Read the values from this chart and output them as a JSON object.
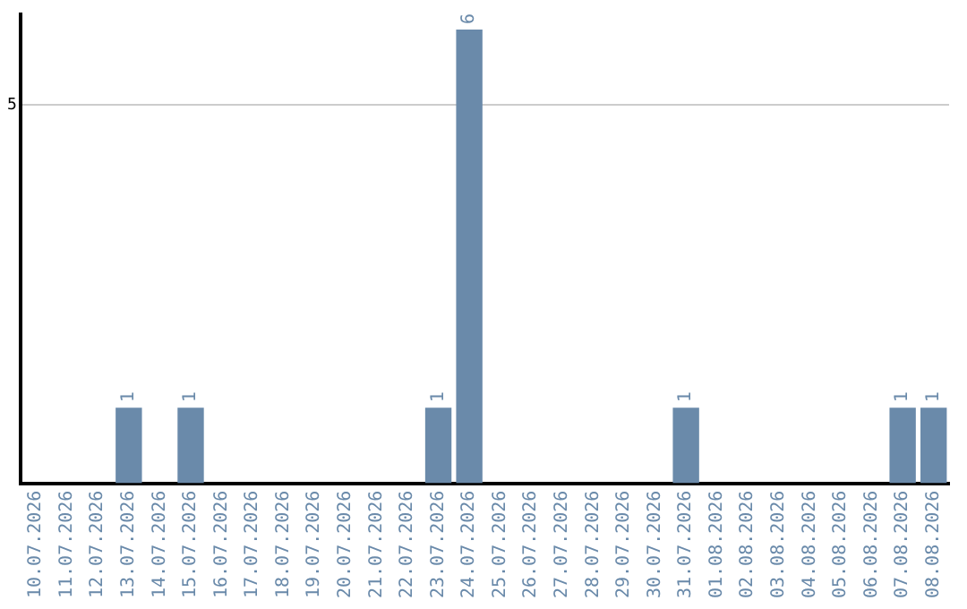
{
  "chart_data": {
    "type": "bar",
    "categories": [
      "10.07.2026",
      "11.07.2026",
      "12.07.2026",
      "13.07.2026",
      "14.07.2026",
      "15.07.2026",
      "16.07.2026",
      "17.07.2026",
      "18.07.2026",
      "19.07.2026",
      "20.07.2026",
      "21.07.2026",
      "22.07.2026",
      "23.07.2026",
      "24.07.2026",
      "25.07.2026",
      "26.07.2026",
      "27.07.2026",
      "28.07.2026",
      "29.07.2026",
      "30.07.2026",
      "31.07.2026",
      "01.08.2026",
      "02.08.2026",
      "03.08.2026",
      "04.08.2026",
      "05.08.2026",
      "06.08.2026",
      "07.08.2026",
      "08.08.2026"
    ],
    "values": [
      0,
      0,
      0,
      1,
      0,
      1,
      0,
      0,
      0,
      0,
      0,
      0,
      0,
      1,
      6,
      0,
      0,
      0,
      0,
      0,
      0,
      1,
      0,
      0,
      0,
      0,
      0,
      0,
      1,
      1
    ],
    "value_labels": [
      null,
      null,
      null,
      "1",
      null,
      "1",
      null,
      null,
      null,
      null,
      null,
      null,
      null,
      "1",
      "6",
      null,
      null,
      null,
      null,
      null,
      null,
      "1",
      null,
      null,
      null,
      null,
      null,
      null,
      "1",
      "1"
    ],
    "color": "#6a8aaa",
    "ylim": [
      0,
      6.2
    ],
    "yticks": [
      5
    ],
    "grid": "y",
    "legend": false
  }
}
